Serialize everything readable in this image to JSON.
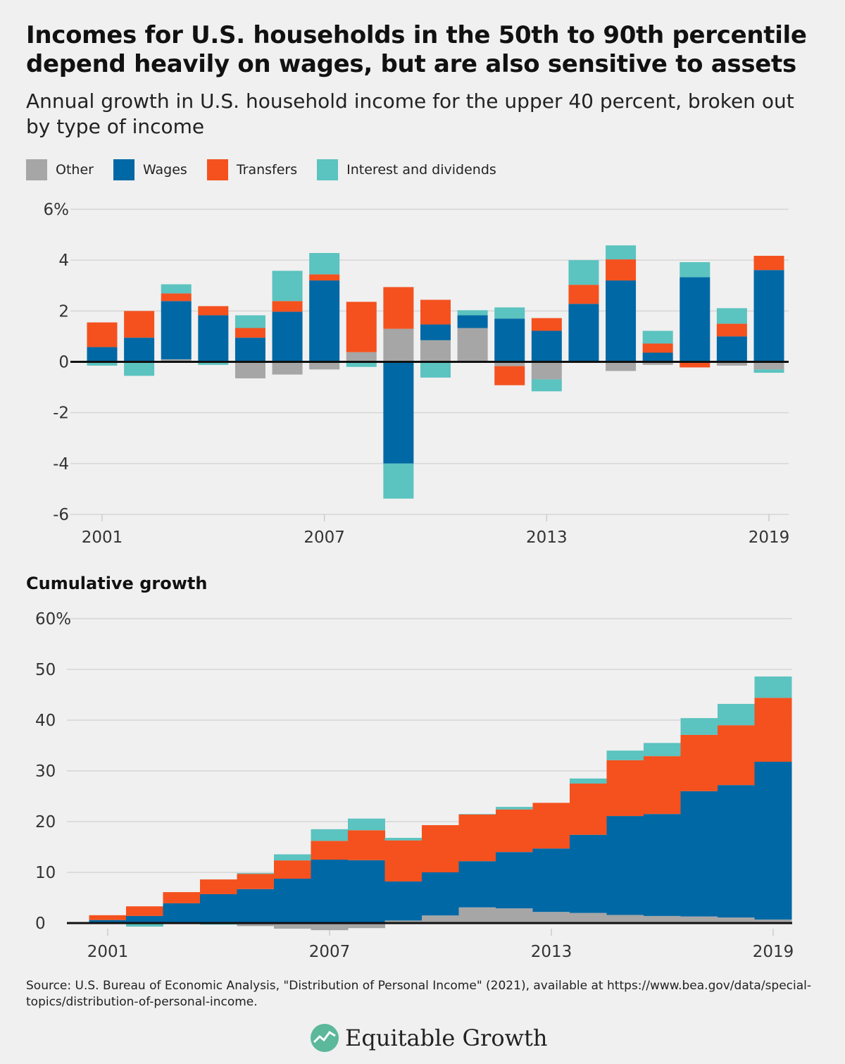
{
  "title": "Incomes for U.S. households in the 50th to 90th percentile depend heavily on wages, but are also sensitive to assets",
  "subtitle": "Annual growth in U.S. household income for the upper 40 percent, broken out by type of income",
  "legend": [
    {
      "name": "Other",
      "color": "#a6a6a6"
    },
    {
      "name": "Wages",
      "color": "#0068a5"
    },
    {
      "name": "Transfers",
      "color": "#f4511e"
    },
    {
      "name": "Interest and dividends",
      "color": "#5bc3c0"
    }
  ],
  "cumulative_title": "Cumulative growth",
  "source": "Source: U.S. Bureau of Economic Analysis, \"Distribution of Personal Income\" (2021), available at https://www.bea.gov/data/special-topics/distribution-of-personal-income.",
  "logo_text": "Equitable Growth",
  "chart_data": [
    {
      "type": "bar",
      "stacked": true,
      "x": [
        2001,
        2002,
        2003,
        2004,
        2005,
        2006,
        2007,
        2008,
        2009,
        2010,
        2011,
        2012,
        2013,
        2014,
        2015,
        2016,
        2017,
        2018,
        2019
      ],
      "ylim": [
        -6,
        6
      ],
      "yticks": [
        6,
        4,
        2,
        0,
        -2,
        -4,
        -6
      ],
      "ytick_labels": [
        "6%",
        "4",
        "2",
        "0",
        "-2",
        "-4",
        "-6"
      ],
      "xtick_labels": [
        "2001",
        "2007",
        "2013",
        "2019"
      ],
      "grid": true,
      "series": [
        {
          "name": "Other",
          "values": [
            0,
            0,
            0.1,
            0,
            -0.65,
            -0.5,
            -0.3,
            0.38,
            1.3,
            0.85,
            1.33,
            -0.17,
            -0.69,
            0,
            -0.36,
            -0.12,
            0,
            -0.15,
            -0.3
          ]
        },
        {
          "name": "Wages",
          "values": [
            0.58,
            0.95,
            2.29,
            1.83,
            0.95,
            1.97,
            3.2,
            0,
            -4.0,
            0.62,
            0.5,
            1.7,
            1.22,
            2.28,
            3.2,
            0.36,
            3.33,
            1.0,
            3.61
          ]
        },
        {
          "name": "Transfers",
          "values": [
            0.97,
            1.05,
            0.3,
            0.36,
            0.38,
            0.42,
            0.24,
            1.98,
            1.64,
            0.97,
            0,
            -0.75,
            0.5,
            0.75,
            0.83,
            0.36,
            -0.22,
            0.5,
            0.56
          ]
        },
        {
          "name": "Interest and dividends",
          "values": [
            -0.15,
            -0.55,
            0.36,
            -0.12,
            0.5,
            1.19,
            0.84,
            -0.2,
            -1.38,
            -0.62,
            0.2,
            0.44,
            -0.47,
            0.97,
            0.55,
            0.5,
            0.59,
            0.61,
            -0.13
          ]
        }
      ]
    },
    {
      "type": "area",
      "stacked": true,
      "step": true,
      "title": "Cumulative growth",
      "x": [
        2001,
        2002,
        2003,
        2004,
        2005,
        2006,
        2007,
        2008,
        2009,
        2010,
        2011,
        2012,
        2013,
        2014,
        2015,
        2016,
        2017,
        2018,
        2019
      ],
      "ylim": [
        0,
        60
      ],
      "yticks": [
        60,
        50,
        40,
        30,
        20,
        10,
        0
      ],
      "ytick_labels": [
        "60%",
        "50",
        "40",
        "30",
        "20",
        "10",
        "0"
      ],
      "xtick_labels": [
        "2001",
        "2007",
        "2013",
        "2019"
      ],
      "grid": true,
      "series": [
        {
          "name": "Other",
          "values": [
            0,
            0,
            0.1,
            0,
            -0.6,
            -1.1,
            -1.4,
            -1.0,
            0.5,
            1.5,
            3.1,
            2.9,
            2.2,
            2.0,
            1.6,
            1.4,
            1.3,
            1.1,
            0.7
          ]
        },
        {
          "name": "Wages",
          "values": [
            0.6,
            1.4,
            3.8,
            5.7,
            6.7,
            8.75,
            12.5,
            12.4,
            7.7,
            8.5,
            9.1,
            11.1,
            12.5,
            15.4,
            19.5,
            20.1,
            24.7,
            26.1,
            31.1
          ]
        },
        {
          "name": "Transfers",
          "values": [
            0.95,
            1.9,
            2.2,
            2.9,
            3.0,
            3.6,
            3.7,
            5.9,
            8.1,
            9.3,
            9.2,
            8.4,
            9.0,
            10.1,
            11.0,
            11.4,
            11.1,
            11.8,
            12.6
          ]
        },
        {
          "name": "Interest and dividends",
          "values": [
            -0.15,
            -0.7,
            -0.1,
            -0.3,
            0.15,
            1.2,
            2.3,
            2.3,
            0.5,
            0,
            0.1,
            0.5,
            0,
            1.0,
            1.9,
            2.6,
            3.3,
            4.2,
            4.2
          ]
        }
      ]
    }
  ]
}
